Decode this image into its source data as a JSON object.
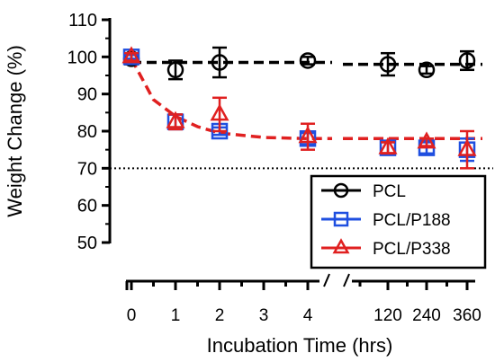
{
  "chart_data": {
    "type": "line",
    "title": "",
    "ylabel": "Weight Change (%)",
    "xlabel": "Incubation Time (hrs)",
    "ylim": [
      50,
      110
    ],
    "y_ticks": [
      50,
      60,
      70,
      80,
      90,
      100,
      110
    ],
    "x_axis_broken": true,
    "x_segment_1": {
      "ticks": [
        0,
        1,
        2,
        3,
        4
      ],
      "range": [
        0,
        4
      ]
    },
    "x_segment_2": {
      "ticks": [
        120,
        240,
        360
      ]
    },
    "reference_line": {
      "y": 70,
      "style": "dotted",
      "color": "#000000"
    },
    "legend_position": "bottom-right",
    "series": [
      {
        "name": "PCL",
        "color": "#000000",
        "marker": "circle",
        "x": [
          0,
          1,
          2,
          4,
          120,
          240,
          360
        ],
        "y": [
          99.5,
          96.5,
          98.5,
          99.0,
          98.0,
          96.5,
          99.0
        ],
        "err": [
          1.5,
          2.5,
          4.0,
          1.0,
          3.0,
          1.0,
          2.5
        ],
        "fit": [
          [
            0,
            98.5
          ],
          [
            4,
            98.5
          ],
          [
            120,
            98.0
          ],
          [
            360,
            98.0
          ]
        ]
      },
      {
        "name": "PCL/P188",
        "color": "#1f4fe0",
        "marker": "square",
        "x": [
          0,
          1,
          2,
          4,
          120,
          240,
          360
        ],
        "y": [
          100,
          82.5,
          80.0,
          78.0,
          75.5,
          75.5,
          75.0
        ],
        "err": [
          0.5,
          2.0,
          1.0,
          1.5,
          1.5,
          1.5,
          3.0
        ]
      },
      {
        "name": "PCL/P338",
        "color": "#e02020",
        "marker": "triangle",
        "x": [
          0,
          1,
          2,
          4,
          120,
          240,
          360
        ],
        "y": [
          100,
          82.5,
          84.5,
          78.5,
          75.5,
          77.0,
          75.0
        ],
        "err": [
          1.0,
          2.0,
          4.5,
          3.5,
          1.5,
          1.0,
          5.0
        ],
        "fit": [
          [
            0,
            99.5
          ],
          [
            0.5,
            88.5
          ],
          [
            1,
            84.0
          ],
          [
            1.5,
            81.2
          ],
          [
            2,
            79.5
          ],
          [
            3,
            78.3
          ],
          [
            4,
            78.0
          ],
          [
            120,
            78.0
          ],
          [
            360,
            78.0
          ]
        ]
      }
    ]
  }
}
